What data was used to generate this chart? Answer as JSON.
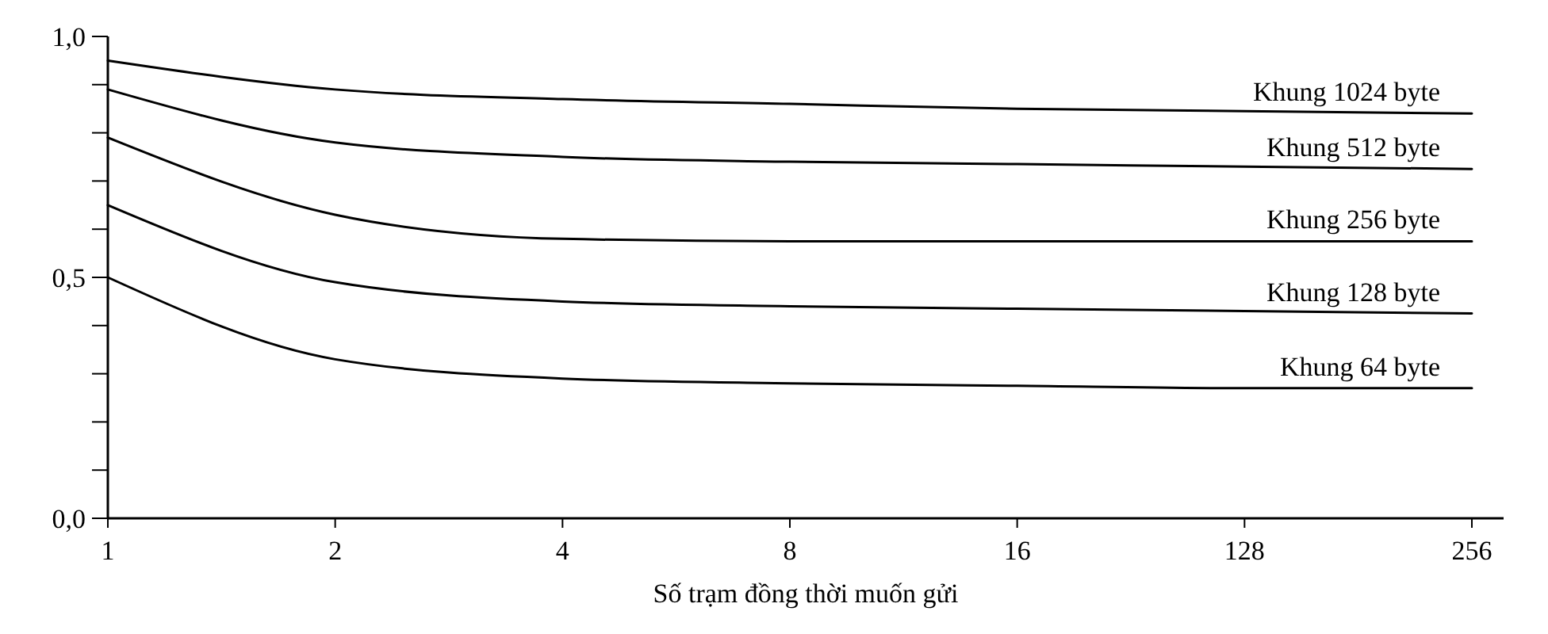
{
  "chart_data": {
    "type": "line",
    "xlabel": "Số trạm đồng thời muốn gửi",
    "categories": [
      "1",
      "2",
      "4",
      "8",
      "16",
      "128",
      "256"
    ],
    "series": [
      {
        "name": "Khung 1024 byte",
        "color": "#000000",
        "values": [
          0.95,
          0.89,
          0.87,
          0.86,
          0.85,
          0.845,
          0.84
        ]
      },
      {
        "name": "Khung 512 byte",
        "color": "#000000",
        "values": [
          0.89,
          0.78,
          0.75,
          0.74,
          0.735,
          0.73,
          0.725
        ]
      },
      {
        "name": "Khung 256 byte",
        "color": "#000000",
        "values": [
          0.79,
          0.63,
          0.58,
          0.575,
          0.575,
          0.575,
          0.575
        ]
      },
      {
        "name": "Khung 128 byte",
        "color": "#000000",
        "values": [
          0.65,
          0.49,
          0.45,
          0.44,
          0.435,
          0.43,
          0.425
        ]
      },
      {
        "name": "Khung 64 byte",
        "color": "#000000",
        "values": [
          0.5,
          0.33,
          0.29,
          0.28,
          0.275,
          0.27,
          0.27
        ]
      }
    ],
    "ylim": [
      0,
      1
    ],
    "yticks": [
      {
        "value": 0,
        "label": "0,0"
      },
      {
        "value": 0.1,
        "label": null
      },
      {
        "value": 0.2,
        "label": null
      },
      {
        "value": 0.3,
        "label": null
      },
      {
        "value": 0.4,
        "label": null
      },
      {
        "value": 0.5,
        "label": "0,5"
      },
      {
        "value": 0.6,
        "label": null
      },
      {
        "value": 0.7,
        "label": null
      },
      {
        "value": 0.8,
        "label": null
      },
      {
        "value": 0.9,
        "label": null
      },
      {
        "value": 1,
        "label": "1,0"
      }
    ],
    "grid": false,
    "legend": false,
    "marker": "none",
    "line_style": "solid"
  }
}
